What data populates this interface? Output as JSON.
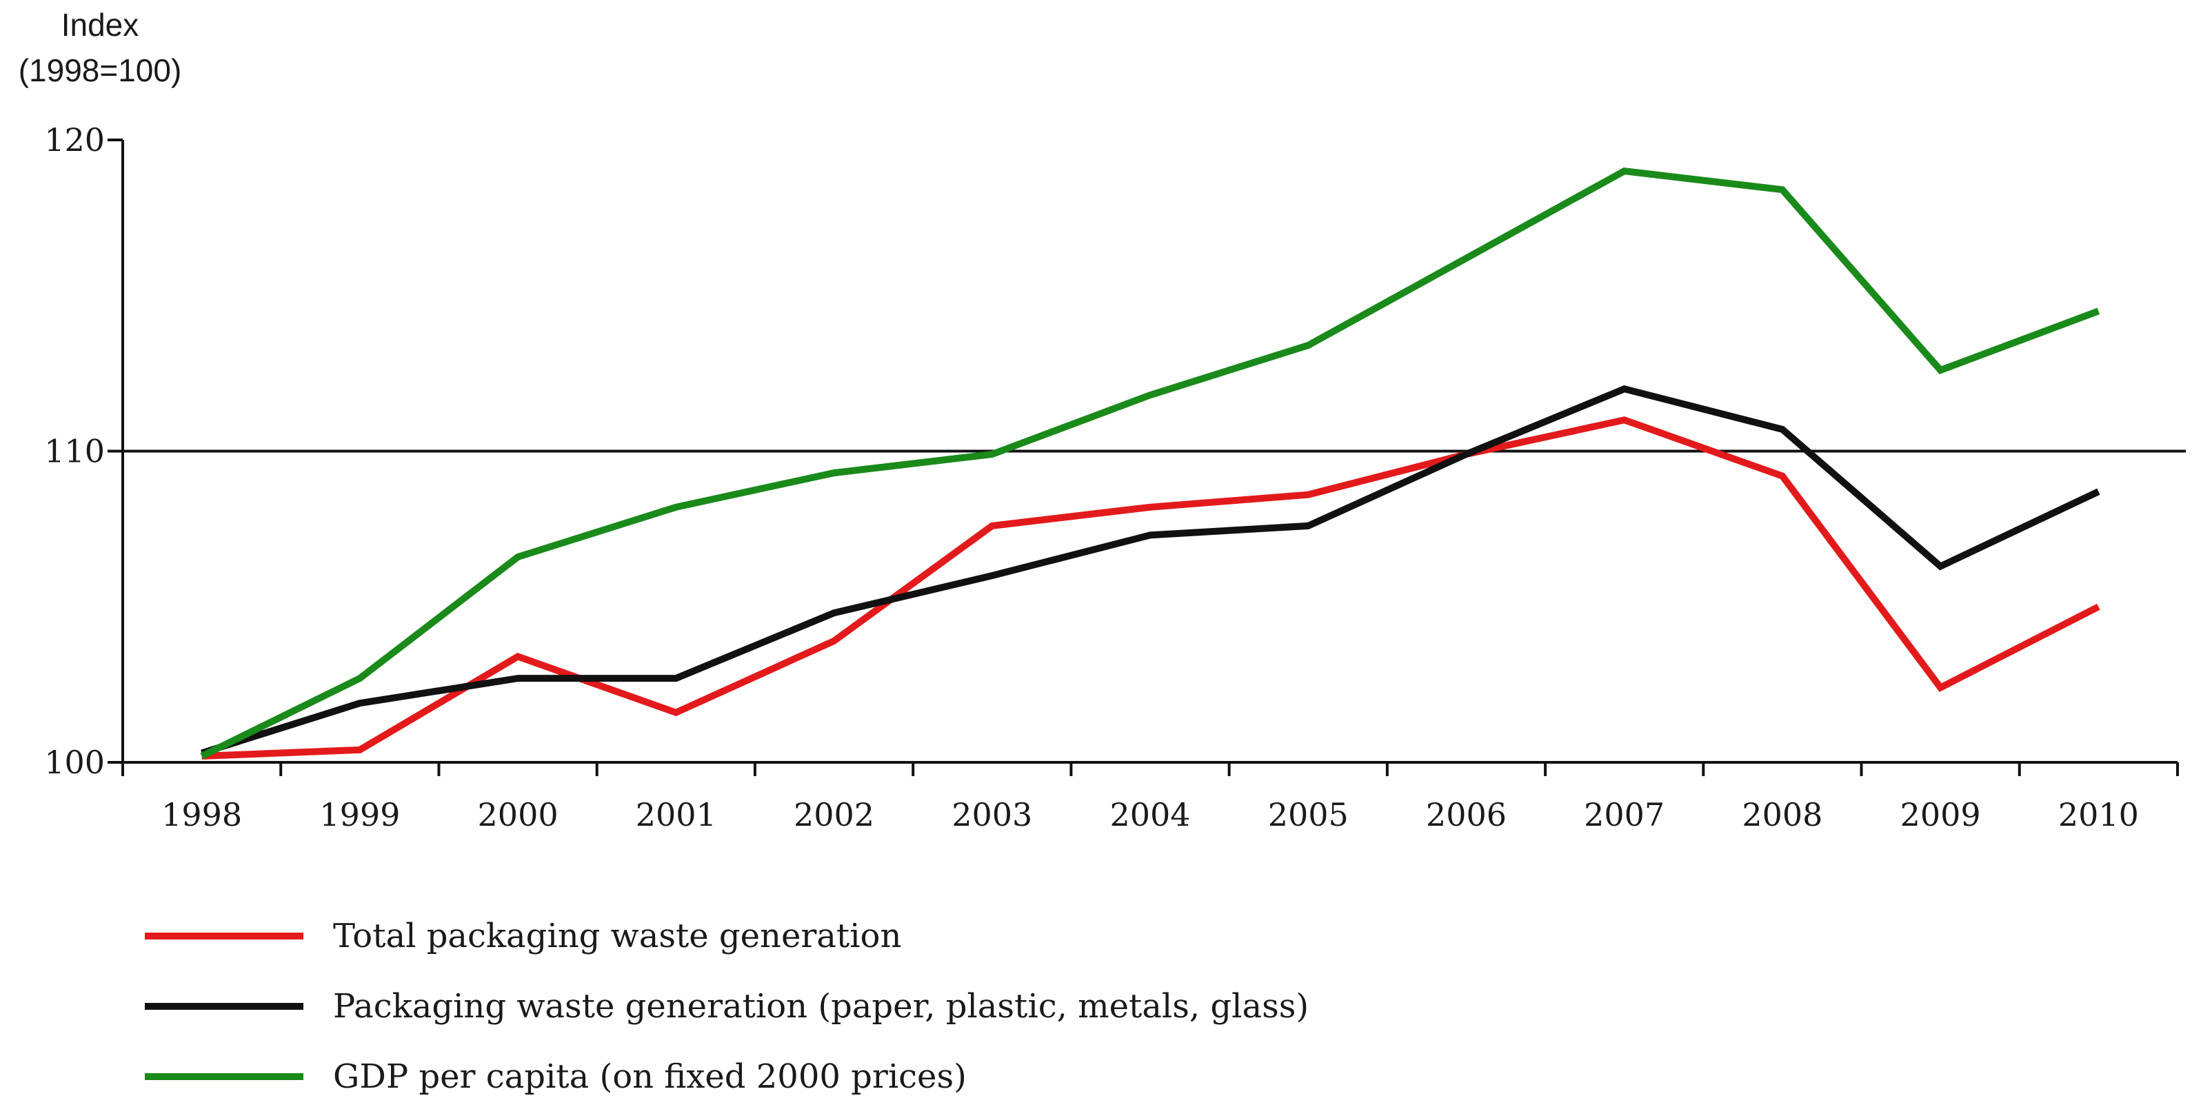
{
  "chart_data": {
    "type": "line",
    "ylabel_line1": "Index",
    "ylabel_line2": "(1998=100)",
    "x": [
      "1998",
      "1999",
      "2000",
      "2001",
      "2002",
      "2003",
      "2004",
      "2005",
      "2006",
      "2007",
      "2008",
      "2009",
      "2010"
    ],
    "ylim": [
      100,
      120
    ],
    "yticks": [
      100,
      110,
      120
    ],
    "reference_line": 110,
    "legend_position": "bottom-left",
    "series": [
      {
        "name": "Total packaging waste generation",
        "color": "#e31a1c",
        "values": [
          100.2,
          100.4,
          103.4,
          101.6,
          103.9,
          107.6,
          108.2,
          108.6,
          109.9,
          111.0,
          109.2,
          102.4,
          105.0
        ]
      },
      {
        "name": "Packaging waste generation (paper, plastic, metals, glass)",
        "color": "#111111",
        "values": [
          100.3,
          101.9,
          102.7,
          102.7,
          104.8,
          106.0,
          107.3,
          107.6,
          109.9,
          112.0,
          110.7,
          106.3,
          108.7
        ]
      },
      {
        "name": "GDP per capita (on fixed 2000 prices)",
        "color": "#1a8a1a",
        "values": [
          100.2,
          102.7,
          106.6,
          108.2,
          109.3,
          109.9,
          111.8,
          113.4,
          116.2,
          119.0,
          118.4,
          112.6,
          114.5
        ]
      }
    ]
  }
}
